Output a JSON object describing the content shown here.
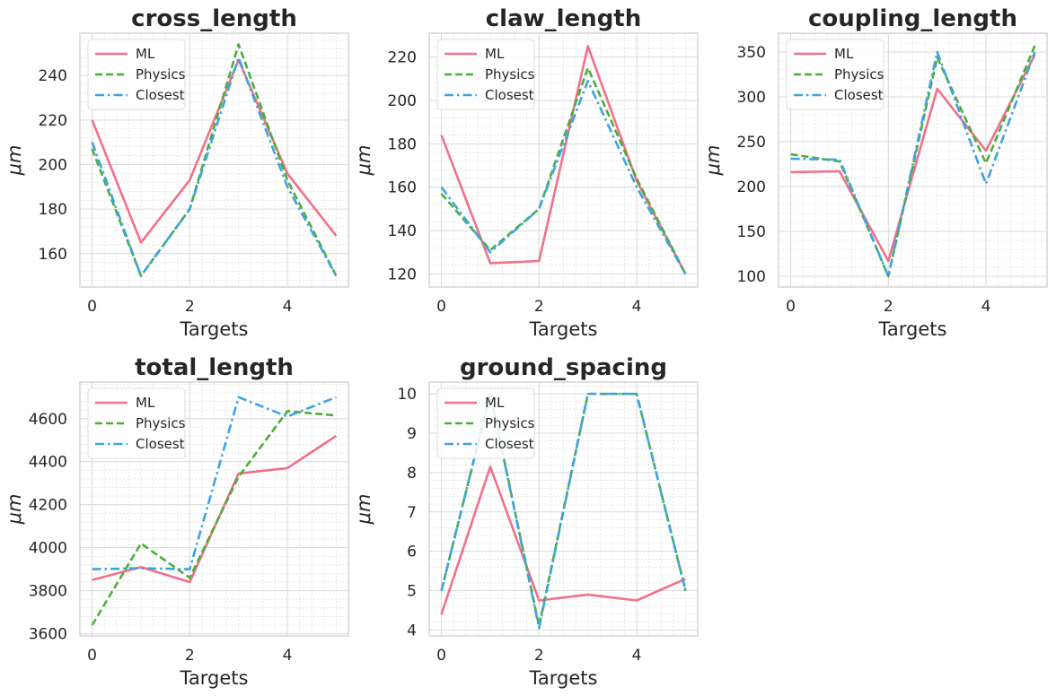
{
  "colors": {
    "ml": "#f0718a",
    "physics": "#4cae3a",
    "closest": "#3ea4e0",
    "grid": "#d9d9d9",
    "frame": "#cfcfcf",
    "text": "#262626"
  },
  "chart_data": [
    {
      "type": "line",
      "title": "cross_length",
      "xlabel": "Targets",
      "ylabel": "μm",
      "x": [
        0,
        1,
        2,
        3,
        4,
        5
      ],
      "xlim": [
        -0.25,
        5.25
      ],
      "ylim": [
        145,
        259
      ],
      "xticks": [
        0,
        2,
        4
      ],
      "yticks": [
        160,
        180,
        200,
        220,
        240
      ],
      "legend_position": "upper-left",
      "series": [
        {
          "name": "ML",
          "values": [
            220,
            165,
            193,
            247,
            196,
            168
          ]
        },
        {
          "name": "Physics",
          "values": [
            207,
            150,
            180,
            254,
            193,
            150
          ]
        },
        {
          "name": "Closest",
          "values": [
            210,
            150,
            180,
            248,
            190,
            150
          ]
        }
      ]
    },
    {
      "type": "line",
      "title": "claw_length",
      "xlabel": "Targets",
      "ylabel": "μm",
      "x": [
        0,
        1,
        2,
        3,
        4,
        5
      ],
      "xlim": [
        -0.25,
        5.25
      ],
      "ylim": [
        114,
        231
      ],
      "xticks": [
        0,
        2,
        4
      ],
      "yticks": [
        120,
        140,
        160,
        180,
        200,
        220
      ],
      "legend_position": "upper-left",
      "series": [
        {
          "name": "ML",
          "values": [
            184,
            125,
            126,
            225,
            163,
            120
          ]
        },
        {
          "name": "Physics",
          "values": [
            157,
            131,
            150,
            215,
            164,
            120
          ]
        },
        {
          "name": "Closest",
          "values": [
            160,
            130,
            150,
            209,
            160,
            120
          ]
        }
      ]
    },
    {
      "type": "line",
      "title": "coupling_length",
      "xlabel": "Targets",
      "ylabel": "μm",
      "x": [
        0,
        1,
        2,
        3,
        4,
        5
      ],
      "xlim": [
        -0.25,
        5.25
      ],
      "ylim": [
        88,
        371
      ],
      "xticks": [
        0,
        2,
        4
      ],
      "yticks": [
        100,
        150,
        200,
        250,
        300,
        350
      ],
      "legend_position": "upper-left",
      "series": [
        {
          "name": "ML",
          "values": [
            216,
            217,
            117,
            309,
            240,
            347
          ]
        },
        {
          "name": "Physics",
          "values": [
            236,
            228,
            100,
            344,
            226,
            357
          ]
        },
        {
          "name": "Closest",
          "values": [
            231,
            230,
            100,
            350,
            203,
            350
          ]
        }
      ]
    },
    {
      "type": "line",
      "title": "total_length",
      "xlabel": "Targets",
      "ylabel": "μm",
      "x": [
        0,
        1,
        2,
        3,
        4,
        5
      ],
      "xlim": [
        -0.25,
        5.25
      ],
      "ylim": [
        3590,
        4770
      ],
      "xticks": [
        0,
        2,
        4
      ],
      "yticks": [
        3600,
        3800,
        4000,
        4200,
        4400,
        4600
      ],
      "legend_position": "upper-left",
      "series": [
        {
          "name": "ML",
          "values": [
            3850,
            3910,
            3840,
            4345,
            4370,
            4520
          ]
        },
        {
          "name": "Physics",
          "values": [
            3640,
            4020,
            3860,
            4330,
            4635,
            4615
          ]
        },
        {
          "name": "Closest",
          "values": [
            3900,
            3905,
            3900,
            4700,
            4610,
            4700
          ]
        }
      ]
    },
    {
      "type": "line",
      "title": "ground_spacing",
      "xlabel": "Targets",
      "ylabel": "μm",
      "x": [
        0,
        1,
        2,
        3,
        4,
        5
      ],
      "xlim": [
        -0.25,
        5.25
      ],
      "ylim": [
        3.85,
        10.3
      ],
      "xticks": [
        0,
        2,
        4
      ],
      "yticks": [
        4,
        5,
        6,
        7,
        8,
        9,
        10
      ],
      "legend_position": "upper-left",
      "series": [
        {
          "name": "ML",
          "values": [
            4.4,
            8.15,
            4.75,
            4.9,
            4.75,
            5.3
          ]
        },
        {
          "name": "Physics",
          "values": [
            5,
            10,
            4.1,
            10,
            10,
            5
          ]
        },
        {
          "name": "Closest",
          "values": [
            5,
            10,
            4.05,
            10,
            10,
            5
          ]
        }
      ]
    }
  ]
}
